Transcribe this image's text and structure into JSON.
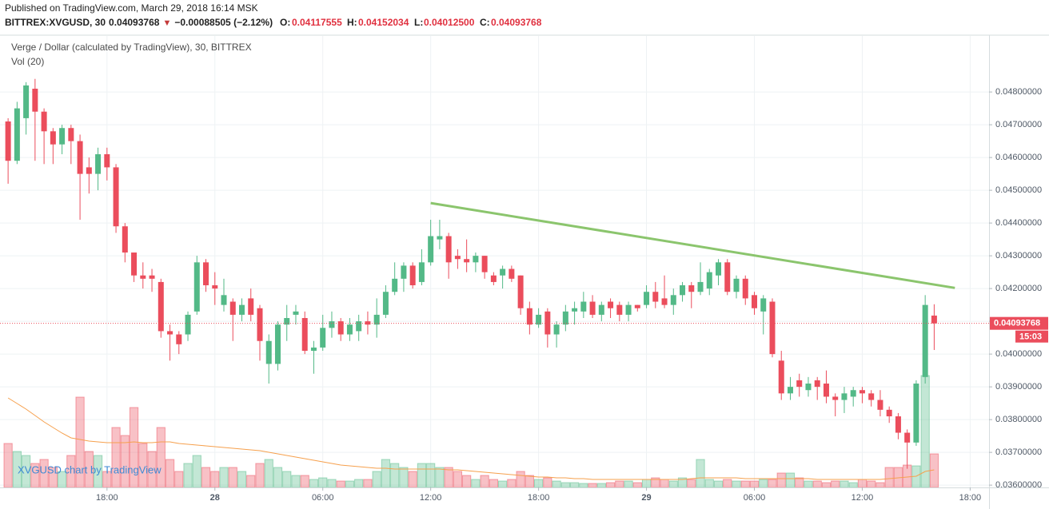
{
  "header": {
    "published": "Published on TradingView.com, March 29, 2018 16:14 MSK",
    "symbol": "BITTREX:XVGUSD, 30",
    "last": "0.04093768",
    "arrow": "▼",
    "change": "−0.00088505 (−2.12%)",
    "o_label": "O:",
    "o": "0.04117555",
    "h_label": "H:",
    "h": "0.04152034",
    "l_label": "L:",
    "l": "0.04012500",
    "c_label": "C:",
    "c": "0.04093768"
  },
  "chart_data": {
    "type": "candlestick",
    "title": "Verge / Dollar (calculated by TradingView), 30, BITTREX",
    "volume_title": "Vol (20)",
    "watermark": "XVGUSD chart by TradingView",
    "up_color": "#53b987",
    "down_color": "#eb4d5c",
    "ma_color": "#f6a04d",
    "grid": true,
    "xlim": [
      -0.9,
      109.1
    ],
    "xticks": [
      {
        "value": 11,
        "label": "18:00"
      },
      {
        "value": 23,
        "label": "28"
      },
      {
        "value": 35,
        "label": "06:00"
      },
      {
        "value": 47,
        "label": "12:00"
      },
      {
        "value": 59,
        "label": "18:00"
      },
      {
        "value": 71,
        "label": "29"
      },
      {
        "value": 83,
        "label": "06:00"
      },
      {
        "value": 95,
        "label": "12:00"
      },
      {
        "value": 107,
        "label": "18:00"
      }
    ],
    "ylim": [
      0.03593,
      0.04971
    ],
    "yticks": [
      {
        "value": 0.036,
        "label": "0.03600000"
      },
      {
        "value": 0.037,
        "label": "0.03700000"
      },
      {
        "value": 0.038,
        "label": "0.03800000"
      },
      {
        "value": 0.039,
        "label": "0.03900000"
      },
      {
        "value": 0.04,
        "label": "0.04000000"
      },
      {
        "value": 0.041,
        "label": "0.04100000"
      },
      {
        "value": 0.042,
        "label": "0.04200000"
      },
      {
        "value": 0.043,
        "label": "0.04300000"
      },
      {
        "value": 0.044,
        "label": "0.04400000"
      },
      {
        "value": 0.045,
        "label": "0.04500000"
      },
      {
        "value": 0.046,
        "label": "0.04600000"
      },
      {
        "value": 0.047,
        "label": "0.04700000"
      },
      {
        "value": 0.048,
        "label": "0.04800000"
      }
    ],
    "last_price_label": "0.04093768",
    "countdown": "15:03",
    "volume_lim": [
      0,
      565
    ],
    "ohlc": [
      [
        0.0471,
        0.0472,
        0.0452,
        0.0459
      ],
      [
        0.0459,
        0.0477,
        0.0458,
        0.0475
      ],
      [
        0.0472,
        0.0483,
        0.0467,
        0.0482
      ],
      [
        0.0481,
        0.0484,
        0.0459,
        0.0474
      ],
      [
        0.0474,
        0.0475,
        0.0458,
        0.0468
      ],
      [
        0.0468,
        0.0469,
        0.0458,
        0.0464
      ],
      [
        0.0464,
        0.047,
        0.0461,
        0.0469
      ],
      [
        0.0469,
        0.047,
        0.0458,
        0.0465
      ],
      [
        0.0465,
        0.0467,
        0.0441,
        0.0455
      ],
      [
        0.0457,
        0.046,
        0.0449,
        0.0455
      ],
      [
        0.0455,
        0.0463,
        0.045,
        0.0461
      ],
      [
        0.0461,
        0.0463,
        0.0453,
        0.0457
      ],
      [
        0.0457,
        0.0458,
        0.0437,
        0.0439
      ],
      [
        0.0439,
        0.044,
        0.0428,
        0.0431
      ],
      [
        0.0431,
        0.0431,
        0.0422,
        0.0424
      ],
      [
        0.0424,
        0.0428,
        0.042,
        0.0423
      ],
      [
        0.0424,
        0.0426,
        0.0419,
        0.0423
      ],
      [
        0.0422,
        0.0423,
        0.0405,
        0.0407
      ],
      [
        0.0407,
        0.0409,
        0.0398,
        0.0406
      ],
      [
        0.0406,
        0.0407,
        0.04,
        0.0403
      ],
      [
        0.0406,
        0.0413,
        0.0404,
        0.0412
      ],
      [
        0.0413,
        0.043,
        0.0412,
        0.0428
      ],
      [
        0.0428,
        0.0429,
        0.0419,
        0.0421
      ],
      [
        0.0421,
        0.0425,
        0.0415,
        0.042
      ],
      [
        0.0415,
        0.0423,
        0.0413,
        0.0418
      ],
      [
        0.0416,
        0.0417,
        0.0404,
        0.0412
      ],
      [
        0.0412,
        0.0417,
        0.041,
        0.0415
      ],
      [
        0.0417,
        0.042,
        0.041,
        0.0412
      ],
      [
        0.0414,
        0.0415,
        0.0398,
        0.0404
      ],
      [
        0.0397,
        0.0406,
        0.0391,
        0.0404
      ],
      [
        0.0397,
        0.041,
        0.0395,
        0.0409
      ],
      [
        0.0409,
        0.0415,
        0.0404,
        0.0411
      ],
      [
        0.0412,
        0.0415,
        0.0409,
        0.0413
      ],
      [
        0.0411,
        0.0413,
        0.04,
        0.0401
      ],
      [
        0.0401,
        0.0404,
        0.0394,
        0.0402
      ],
      [
        0.0402,
        0.0412,
        0.0401,
        0.0408
      ],
      [
        0.0408,
        0.0413,
        0.0405,
        0.041
      ],
      [
        0.041,
        0.0411,
        0.0404,
        0.0406
      ],
      [
        0.0406,
        0.0411,
        0.0404,
        0.0409
      ],
      [
        0.0407,
        0.0412,
        0.0404,
        0.041
      ],
      [
        0.041,
        0.0413,
        0.0406,
        0.0409
      ],
      [
        0.0409,
        0.0417,
        0.0405,
        0.0412
      ],
      [
        0.0412,
        0.0421,
        0.0411,
        0.0419
      ],
      [
        0.0419,
        0.0428,
        0.0418,
        0.0423
      ],
      [
        0.0423,
        0.0428,
        0.0419,
        0.0427
      ],
      [
        0.0427,
        0.0428,
        0.042,
        0.0421
      ],
      [
        0.0422,
        0.0432,
        0.0421,
        0.0428
      ],
      [
        0.0428,
        0.0441,
        0.0427,
        0.0436
      ],
      [
        0.0435,
        0.0441,
        0.0432,
        0.0436
      ],
      [
        0.0436,
        0.0437,
        0.0423,
        0.0428
      ],
      [
        0.043,
        0.0432,
        0.0426,
        0.0429
      ],
      [
        0.0429,
        0.0435,
        0.0425,
        0.0428
      ],
      [
        0.0428,
        0.0431,
        0.0425,
        0.043
      ],
      [
        0.043,
        0.043,
        0.0423,
        0.0425
      ],
      [
        0.0424,
        0.0425,
        0.0421,
        0.0422
      ],
      [
        0.0424,
        0.0427,
        0.042,
        0.0426
      ],
      [
        0.0426,
        0.0427,
        0.0422,
        0.0423
      ],
      [
        0.0424,
        0.0424,
        0.0412,
        0.0414
      ],
      [
        0.0414,
        0.0416,
        0.0406,
        0.0409
      ],
      [
        0.0409,
        0.0414,
        0.0408,
        0.0412
      ],
      [
        0.0413,
        0.0414,
        0.0402,
        0.0406
      ],
      [
        0.0406,
        0.041,
        0.0402,
        0.0409
      ],
      [
        0.0409,
        0.0415,
        0.0407,
        0.0413
      ],
      [
        0.0413,
        0.0416,
        0.0409,
        0.0414
      ],
      [
        0.0413,
        0.0419,
        0.0411,
        0.0416
      ],
      [
        0.0416,
        0.0418,
        0.0411,
        0.0412
      ],
      [
        0.0412,
        0.0416,
        0.041,
        0.0415
      ],
      [
        0.0416,
        0.0417,
        0.0411,
        0.0414
      ],
      [
        0.0415,
        0.0416,
        0.041,
        0.0412
      ],
      [
        0.0412,
        0.0416,
        0.041,
        0.0415
      ],
      [
        0.0415,
        0.0415,
        0.0413,
        0.0414
      ],
      [
        0.0415,
        0.0421,
        0.0414,
        0.0419
      ],
      [
        0.0419,
        0.0422,
        0.0414,
        0.0416
      ],
      [
        0.0417,
        0.0424,
        0.0414,
        0.0415
      ],
      [
        0.0415,
        0.042,
        0.0412,
        0.0418
      ],
      [
        0.0418,
        0.0422,
        0.0416,
        0.0421
      ],
      [
        0.0421,
        0.0422,
        0.0414,
        0.0419
      ],
      [
        0.0419,
        0.0428,
        0.0418,
        0.0422
      ],
      [
        0.042,
        0.0426,
        0.0418,
        0.0425
      ],
      [
        0.0424,
        0.0429,
        0.0421,
        0.0428
      ],
      [
        0.0428,
        0.0429,
        0.0418,
        0.0419
      ],
      [
        0.0419,
        0.0424,
        0.0417,
        0.0423
      ],
      [
        0.0423,
        0.0424,
        0.0415,
        0.0417
      ],
      [
        0.0418,
        0.0419,
        0.0412,
        0.0414
      ],
      [
        0.0413,
        0.0418,
        0.0406,
        0.0417
      ],
      [
        0.0416,
        0.0417,
        0.0399,
        0.04
      ],
      [
        0.0398,
        0.0401,
        0.0386,
        0.0388
      ],
      [
        0.0388,
        0.0393,
        0.0386,
        0.039
      ],
      [
        0.0392,
        0.0394,
        0.0387,
        0.039
      ],
      [
        0.0389,
        0.0393,
        0.0387,
        0.0391
      ],
      [
        0.0392,
        0.0393,
        0.0386,
        0.039
      ],
      [
        0.0391,
        0.0395,
        0.0385,
        0.0387
      ],
      [
        0.0387,
        0.0388,
        0.0381,
        0.0386
      ],
      [
        0.0386,
        0.039,
        0.0382,
        0.0388
      ],
      [
        0.0387,
        0.039,
        0.0384,
        0.0389
      ],
      [
        0.0389,
        0.039,
        0.0385,
        0.0388
      ],
      [
        0.0388,
        0.0389,
        0.0384,
        0.0386
      ],
      [
        0.0386,
        0.0389,
        0.0381,
        0.0383
      ],
      [
        0.0383,
        0.0384,
        0.0379,
        0.0381
      ],
      [
        0.0381,
        0.0382,
        0.0374,
        0.0376
      ],
      [
        0.0376,
        0.0377,
        0.0365,
        0.0373
      ],
      [
        0.0373,
        0.0392,
        0.0372,
        0.0391
      ],
      [
        0.0393,
        0.0418,
        0.0391,
        0.0415
      ],
      [
        0.04117555,
        0.04152034,
        0.040125,
        0.04093768
      ]
    ],
    "volume": [
      55,
      45,
      40,
      30,
      35,
      25,
      20,
      40,
      113,
      45,
      40,
      20,
      75,
      65,
      100,
      55,
      45,
      75,
      35,
      20,
      30,
      40,
      25,
      20,
      25,
      25,
      20,
      15,
      30,
      35,
      25,
      20,
      15,
      15,
      10,
      12,
      10,
      8,
      8,
      10,
      10,
      20,
      35,
      30,
      25,
      20,
      30,
      30,
      25,
      25,
      20,
      15,
      10,
      15,
      10,
      8,
      10,
      20,
      15,
      10,
      12,
      8,
      6,
      6,
      5,
      5,
      5,
      6,
      8,
      8,
      6,
      10,
      12,
      10,
      8,
      12,
      10,
      35,
      10,
      8,
      10,
      8,
      8,
      8,
      10,
      10,
      18,
      18,
      12,
      8,
      8,
      6,
      8,
      8,
      6,
      10,
      8,
      6,
      25,
      25,
      28,
      27,
      140,
      42
    ],
    "volume_ma": [
      112,
      105,
      98,
      90,
      82,
      75,
      68,
      62,
      60,
      58,
      57,
      56,
      56,
      56,
      57,
      56,
      56,
      57,
      57,
      55,
      54,
      53,
      52,
      51,
      50,
      49,
      48,
      47,
      46,
      44,
      42,
      40,
      38,
      36,
      34,
      32,
      30,
      28,
      27,
      26,
      25,
      24,
      24,
      23,
      23,
      23,
      23,
      23,
      23,
      22,
      22,
      21,
      20,
      19,
      18,
      17,
      16,
      15,
      14,
      13,
      13,
      12,
      12,
      11,
      11,
      10,
      10,
      10,
      10,
      10,
      10,
      10,
      10,
      10,
      10,
      10,
      11,
      12,
      12,
      12,
      12,
      12,
      11,
      11,
      11,
      11,
      11,
      11,
      11,
      11,
      10,
      10,
      10,
      10,
      10,
      10,
      10,
      10,
      11,
      12,
      13,
      14,
      20,
      22
    ],
    "trendline": {
      "x": [
        47,
        105.3
      ],
      "y": [
        0.04461,
        0.04202
      ],
      "color": "#8bc56d"
    }
  }
}
